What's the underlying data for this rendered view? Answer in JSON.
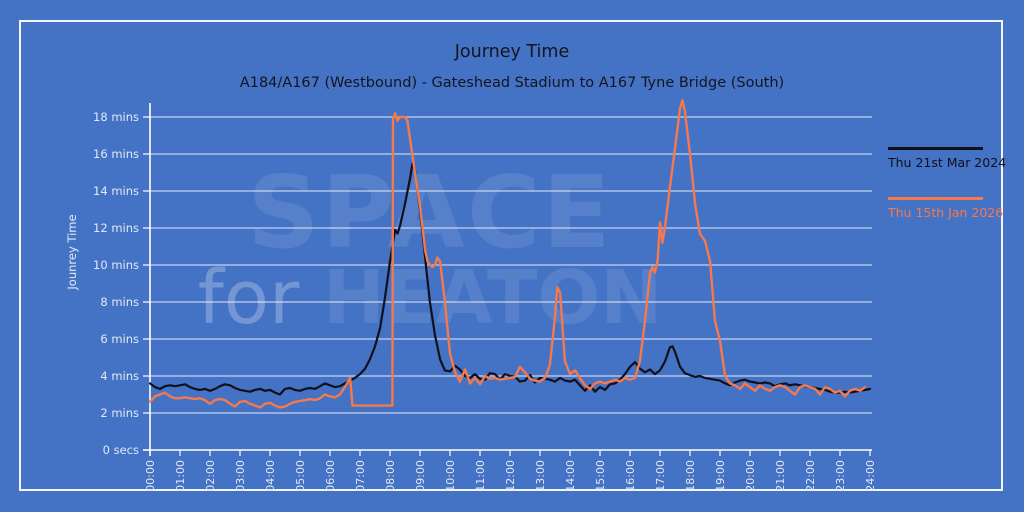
{
  "chart": {
    "title": "Journey Time",
    "subtitle": "A184/A167 (Westbound) - Gateshead Stadium to A167 Tyne Bridge (South)",
    "y_axis_title": "Jounrey Time",
    "watermark": {
      "line1": "SPACE",
      "line2_light": "for",
      "line2_bold": "HEATON"
    }
  },
  "colors": {
    "background": "#4472C4",
    "frame_border": "#FFFFFF",
    "gridline": "#FFFFFF",
    "axis_text": "#E3E9F5",
    "title_text": "#15151D",
    "series_2024": "#10101A",
    "series_2026": "#F5794D"
  },
  "chart_data": {
    "type": "line",
    "title": "Journey Time",
    "subtitle": "A184/A167 (Westbound) - Gateshead Stadium to A167 Tyne Bridge (South)",
    "xlabel": "",
    "ylabel": "Jounrey Time",
    "x_unit_hours": [
      0,
      24
    ],
    "ylim_minutes": [
      0,
      18
    ],
    "grid": "horizontal-only",
    "legend_position": "right-outside",
    "x_tick_labels": [
      "00:00",
      "01:00",
      "02:00",
      "03:00",
      "04:00",
      "05:00",
      "06:00",
      "07:00",
      "08:00",
      "09:00",
      "10:00",
      "11:00",
      "12:00",
      "13:00",
      "14:00",
      "15:00",
      "16:00",
      "17:00",
      "18:00",
      "19:00",
      "20:00",
      "21:00",
      "22:00",
      "23:00",
      "24:00"
    ],
    "y_tick_labels": [
      "0 secs",
      "2 mins",
      "4 mins",
      "6 mins",
      "8 mins",
      "10 mins",
      "12 mins",
      "14 mins",
      "16 mins",
      "18 mins"
    ],
    "series": [
      {
        "name": "Thu 21st Mar 2024",
        "color": "#10101A",
        "units": "minutes (journey time) vs time of day in decimal hours",
        "points": [
          [
            0,
            3.6
          ],
          [
            0.17,
            3.4
          ],
          [
            0.33,
            3.3
          ],
          [
            0.5,
            3.45
          ],
          [
            0.67,
            3.5
          ],
          [
            0.83,
            3.45
          ],
          [
            1,
            3.5
          ],
          [
            1.17,
            3.55
          ],
          [
            1.33,
            3.4
          ],
          [
            1.5,
            3.3
          ],
          [
            1.67,
            3.25
          ],
          [
            1.83,
            3.3
          ],
          [
            2,
            3.2
          ],
          [
            2.17,
            3.3
          ],
          [
            2.33,
            3.45
          ],
          [
            2.5,
            3.55
          ],
          [
            2.67,
            3.5
          ],
          [
            2.83,
            3.35
          ],
          [
            3,
            3.25
          ],
          [
            3.17,
            3.2
          ],
          [
            3.33,
            3.15
          ],
          [
            3.5,
            3.25
          ],
          [
            3.67,
            3.3
          ],
          [
            3.83,
            3.2
          ],
          [
            4,
            3.25
          ],
          [
            4.17,
            3.1
          ],
          [
            4.33,
            3.0
          ],
          [
            4.5,
            3.3
          ],
          [
            4.67,
            3.35
          ],
          [
            4.83,
            3.25
          ],
          [
            5,
            3.2
          ],
          [
            5.17,
            3.3
          ],
          [
            5.33,
            3.35
          ],
          [
            5.5,
            3.3
          ],
          [
            5.67,
            3.45
          ],
          [
            5.83,
            3.6
          ],
          [
            6,
            3.5
          ],
          [
            6.17,
            3.4
          ],
          [
            6.33,
            3.45
          ],
          [
            6.5,
            3.6
          ],
          [
            6.67,
            3.75
          ],
          [
            6.83,
            3.9
          ],
          [
            7,
            4.1
          ],
          [
            7.17,
            4.4
          ],
          [
            7.33,
            4.9
          ],
          [
            7.5,
            5.6
          ],
          [
            7.67,
            6.6
          ],
          [
            7.83,
            8.2
          ],
          [
            8,
            10.2
          ],
          [
            8.17,
            11.9
          ],
          [
            8.25,
            11.7
          ],
          [
            8.33,
            12.1
          ],
          [
            8.5,
            13.3
          ],
          [
            8.67,
            14.7
          ],
          [
            8.75,
            15.5
          ],
          [
            8.83,
            15.1
          ],
          [
            9,
            13.0
          ],
          [
            9.17,
            10.4
          ],
          [
            9.33,
            8.0
          ],
          [
            9.5,
            6.2
          ],
          [
            9.67,
            4.9
          ],
          [
            9.83,
            4.3
          ],
          [
            10,
            4.25
          ],
          [
            10.17,
            4.55
          ],
          [
            10.33,
            4.35
          ],
          [
            10.5,
            4.0
          ],
          [
            10.67,
            3.9
          ],
          [
            10.83,
            4.1
          ],
          [
            11,
            3.85
          ],
          [
            11.17,
            3.8
          ],
          [
            11.33,
            4.15
          ],
          [
            11.5,
            4.1
          ],
          [
            11.67,
            3.8
          ],
          [
            11.83,
            4.1
          ],
          [
            12,
            4.0
          ],
          [
            12.17,
            3.95
          ],
          [
            12.33,
            3.7
          ],
          [
            12.5,
            3.75
          ],
          [
            12.67,
            4.05
          ],
          [
            12.83,
            3.65
          ],
          [
            13,
            3.9
          ],
          [
            13.17,
            3.85
          ],
          [
            13.33,
            3.8
          ],
          [
            13.5,
            3.7
          ],
          [
            13.67,
            3.9
          ],
          [
            13.83,
            3.75
          ],
          [
            14,
            3.7
          ],
          [
            14.17,
            3.8
          ],
          [
            14.33,
            3.5
          ],
          [
            14.5,
            3.2
          ],
          [
            14.67,
            3.5
          ],
          [
            14.83,
            3.15
          ],
          [
            15,
            3.4
          ],
          [
            15.17,
            3.25
          ],
          [
            15.33,
            3.55
          ],
          [
            15.5,
            3.6
          ],
          [
            15.67,
            3.8
          ],
          [
            15.83,
            4.1
          ],
          [
            16,
            4.5
          ],
          [
            16.17,
            4.75
          ],
          [
            16.33,
            4.4
          ],
          [
            16.5,
            4.2
          ],
          [
            16.67,
            4.35
          ],
          [
            16.83,
            4.1
          ],
          [
            17,
            4.3
          ],
          [
            17.17,
            4.8
          ],
          [
            17.33,
            5.55
          ],
          [
            17.42,
            5.6
          ],
          [
            17.5,
            5.3
          ],
          [
            17.67,
            4.5
          ],
          [
            17.83,
            4.15
          ],
          [
            18,
            4.05
          ],
          [
            18.17,
            3.95
          ],
          [
            18.33,
            4.0
          ],
          [
            18.5,
            3.9
          ],
          [
            18.67,
            3.85
          ],
          [
            18.83,
            3.8
          ],
          [
            19,
            3.75
          ],
          [
            19.17,
            3.6
          ],
          [
            19.33,
            3.5
          ],
          [
            19.5,
            3.65
          ],
          [
            19.67,
            3.75
          ],
          [
            19.83,
            3.8
          ],
          [
            20,
            3.7
          ],
          [
            20.17,
            3.65
          ],
          [
            20.33,
            3.6
          ],
          [
            20.5,
            3.65
          ],
          [
            20.67,
            3.6
          ],
          [
            20.83,
            3.45
          ],
          [
            21,
            3.55
          ],
          [
            21.17,
            3.6
          ],
          [
            21.33,
            3.5
          ],
          [
            21.5,
            3.55
          ],
          [
            21.67,
            3.5
          ],
          [
            21.83,
            3.45
          ],
          [
            22,
            3.4
          ],
          [
            22.17,
            3.35
          ],
          [
            22.33,
            3.3
          ],
          [
            22.5,
            3.25
          ],
          [
            22.67,
            3.15
          ],
          [
            22.83,
            3.1
          ],
          [
            23,
            3.1
          ],
          [
            23.17,
            3.15
          ],
          [
            23.33,
            3.1
          ],
          [
            23.5,
            3.15
          ],
          [
            23.67,
            3.2
          ],
          [
            23.83,
            3.25
          ],
          [
            24,
            3.3
          ]
        ]
      },
      {
        "name": "Thu 15th Jan 2026",
        "color": "#F5794D",
        "units": "minutes (journey time) vs time of day in decimal hours",
        "points": [
          [
            0,
            2.6
          ],
          [
            0.17,
            2.9
          ],
          [
            0.33,
            3.0
          ],
          [
            0.5,
            3.1
          ],
          [
            0.67,
            2.9
          ],
          [
            0.83,
            2.8
          ],
          [
            1,
            2.8
          ],
          [
            1.17,
            2.85
          ],
          [
            1.33,
            2.8
          ],
          [
            1.5,
            2.75
          ],
          [
            1.67,
            2.8
          ],
          [
            1.83,
            2.7
          ],
          [
            2,
            2.5
          ],
          [
            2.17,
            2.7
          ],
          [
            2.33,
            2.75
          ],
          [
            2.5,
            2.7
          ],
          [
            2.67,
            2.5
          ],
          [
            2.83,
            2.35
          ],
          [
            3,
            2.6
          ],
          [
            3.17,
            2.65
          ],
          [
            3.33,
            2.5
          ],
          [
            3.5,
            2.4
          ],
          [
            3.67,
            2.3
          ],
          [
            3.83,
            2.5
          ],
          [
            4,
            2.55
          ],
          [
            4.17,
            2.4
          ],
          [
            4.33,
            2.3
          ],
          [
            4.5,
            2.35
          ],
          [
            4.67,
            2.5
          ],
          [
            4.83,
            2.6
          ],
          [
            5,
            2.65
          ],
          [
            5.17,
            2.7
          ],
          [
            5.33,
            2.75
          ],
          [
            5.5,
            2.7
          ],
          [
            5.67,
            2.8
          ],
          [
            5.83,
            3.0
          ],
          [
            6,
            2.9
          ],
          [
            6.17,
            2.85
          ],
          [
            6.33,
            3.0
          ],
          [
            6.5,
            3.4
          ],
          [
            6.67,
            3.9
          ],
          [
            6.75,
            2.4
          ],
          [
            8.08,
            2.4
          ],
          [
            8.1,
            17.9
          ],
          [
            8.17,
            18.2
          ],
          [
            8.25,
            17.8
          ],
          [
            8.33,
            18.0
          ],
          [
            8.5,
            18.0
          ],
          [
            8.58,
            17.8
          ],
          [
            8.67,
            16.8
          ],
          [
            8.83,
            15.0
          ],
          [
            9,
            13.2
          ],
          [
            9.17,
            10.8
          ],
          [
            9.25,
            10.2
          ],
          [
            9.33,
            10.0
          ],
          [
            9.42,
            9.9
          ],
          [
            9.5,
            10.0
          ],
          [
            9.58,
            10.4
          ],
          [
            9.67,
            10.2
          ],
          [
            9.83,
            8.0
          ],
          [
            10,
            5.2
          ],
          [
            10.17,
            4.2
          ],
          [
            10.33,
            3.7
          ],
          [
            10.5,
            4.35
          ],
          [
            10.67,
            3.6
          ],
          [
            10.83,
            3.9
          ],
          [
            11,
            3.55
          ],
          [
            11.17,
            4.0
          ],
          [
            11.33,
            3.85
          ],
          [
            11.5,
            3.9
          ],
          [
            11.67,
            3.8
          ],
          [
            11.83,
            3.85
          ],
          [
            12,
            3.9
          ],
          [
            12.17,
            3.95
          ],
          [
            12.33,
            4.5
          ],
          [
            12.5,
            4.2
          ],
          [
            12.67,
            3.85
          ],
          [
            12.83,
            3.75
          ],
          [
            13,
            3.7
          ],
          [
            13.17,
            3.9
          ],
          [
            13.33,
            4.6
          ],
          [
            13.5,
            7.2
          ],
          [
            13.58,
            8.8
          ],
          [
            13.67,
            8.5
          ],
          [
            13.83,
            4.8
          ],
          [
            14,
            4.1
          ],
          [
            14.17,
            4.3
          ],
          [
            14.33,
            3.9
          ],
          [
            14.5,
            3.5
          ],
          [
            14.67,
            3.3
          ],
          [
            14.83,
            3.6
          ],
          [
            15,
            3.7
          ],
          [
            15.17,
            3.6
          ],
          [
            15.33,
            3.7
          ],
          [
            15.5,
            3.8
          ],
          [
            15.67,
            3.7
          ],
          [
            15.83,
            3.9
          ],
          [
            16,
            3.8
          ],
          [
            16.17,
            3.9
          ],
          [
            16.33,
            4.8
          ],
          [
            16.5,
            7.0
          ],
          [
            16.67,
            9.6
          ],
          [
            16.75,
            9.9
          ],
          [
            16.83,
            9.6
          ],
          [
            16.92,
            10.2
          ],
          [
            17,
            12.3
          ],
          [
            17.08,
            11.2
          ],
          [
            17.17,
            12.1
          ],
          [
            17.33,
            14.2
          ],
          [
            17.5,
            16.3
          ],
          [
            17.67,
            18.5
          ],
          [
            17.75,
            18.9
          ],
          [
            17.83,
            18.3
          ],
          [
            18,
            16.0
          ],
          [
            18.17,
            13.3
          ],
          [
            18.33,
            11.7
          ],
          [
            18.5,
            11.3
          ],
          [
            18.67,
            10.2
          ],
          [
            18.83,
            7.0
          ],
          [
            19,
            5.9
          ],
          [
            19.17,
            4.0
          ],
          [
            19.33,
            3.6
          ],
          [
            19.5,
            3.5
          ],
          [
            19.67,
            3.3
          ],
          [
            19.83,
            3.6
          ],
          [
            20,
            3.4
          ],
          [
            20.17,
            3.2
          ],
          [
            20.33,
            3.5
          ],
          [
            20.5,
            3.3
          ],
          [
            20.67,
            3.2
          ],
          [
            20.83,
            3.4
          ],
          [
            21,
            3.5
          ],
          [
            21.17,
            3.4
          ],
          [
            21.33,
            3.2
          ],
          [
            21.5,
            3.0
          ],
          [
            21.67,
            3.4
          ],
          [
            21.83,
            3.5
          ],
          [
            22,
            3.4
          ],
          [
            22.17,
            3.3
          ],
          [
            22.33,
            3.0
          ],
          [
            22.5,
            3.4
          ],
          [
            22.67,
            3.3
          ],
          [
            22.83,
            3.1
          ],
          [
            23,
            3.2
          ],
          [
            23.17,
            2.9
          ],
          [
            23.33,
            3.2
          ],
          [
            23.5,
            3.3
          ],
          [
            23.67,
            3.2
          ],
          [
            23.83,
            3.4
          ]
        ]
      }
    ]
  }
}
